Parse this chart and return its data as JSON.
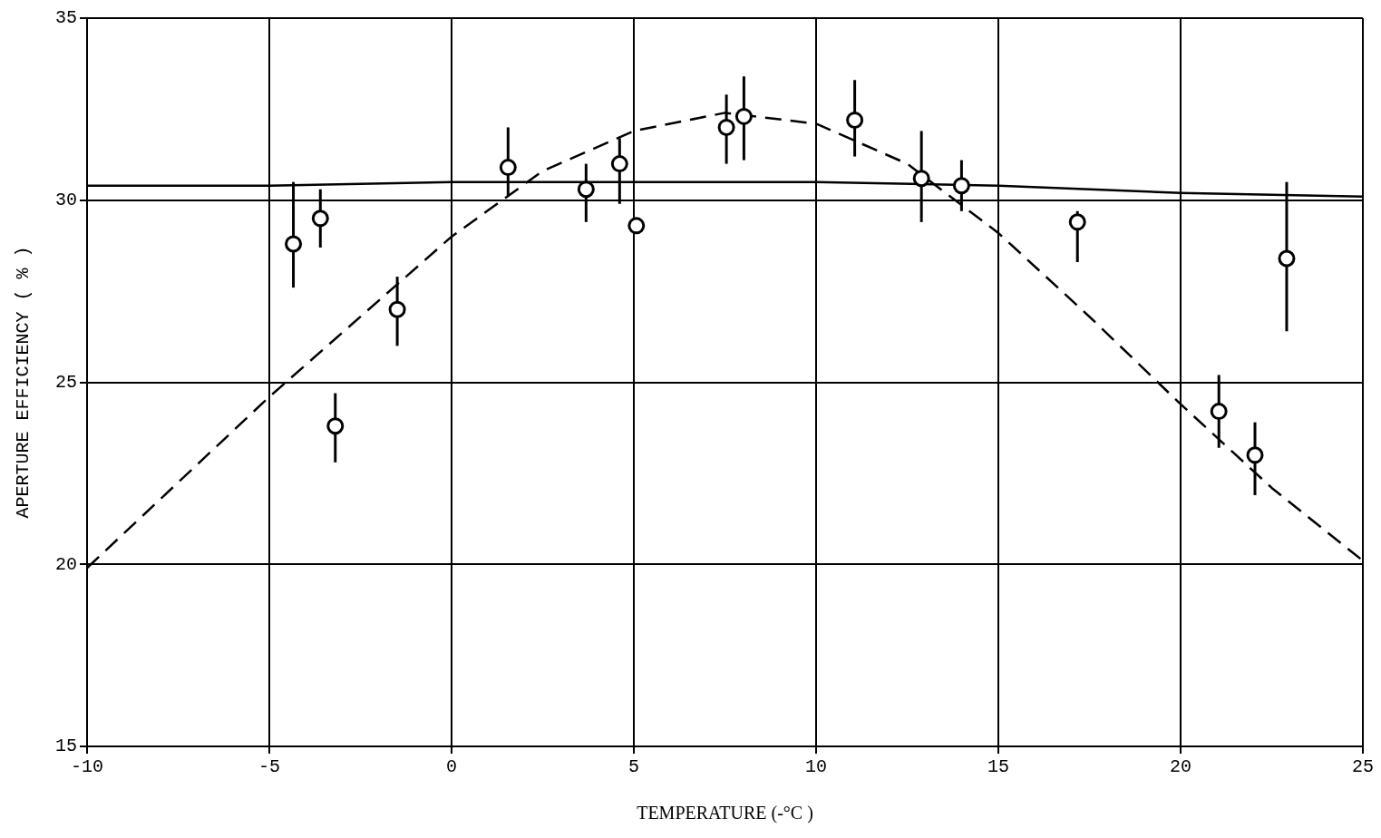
{
  "chart_data": {
    "type": "scatter",
    "xlabel": "TEMPERATURE (-°C )",
    "ylabel": "APERTURE EFFICIENCY ( % )",
    "xlim": [
      -10,
      25
    ],
    "xticks": [
      -10,
      -5,
      0,
      5,
      10,
      15,
      20,
      25
    ],
    "ylim": [
      15,
      35
    ],
    "yticks": [
      15,
      20,
      25,
      30,
      35
    ],
    "grid": true,
    "legend": false,
    "series": [
      {
        "color": "#000000",
        "marker": "circle",
        "x": [
          -4.34,
          -3.6,
          -3.19,
          -1.49,
          1.55,
          3.69,
          4.61,
          5.07,
          7.54,
          8.02,
          11.06,
          12.89,
          13.99,
          17.17,
          21.05,
          22.04,
          22.91
        ],
        "values": [
          28.8,
          29.5,
          23.8,
          27.0,
          30.9,
          30.3,
          31.0,
          29.3,
          32.0,
          32.3,
          32.2,
          30.6,
          30.4,
          29.4,
          24.2,
          23.0,
          28.4
        ],
        "errors": [
          [
            27.6,
            30.5
          ],
          [
            28.7,
            30.3
          ],
          [
            22.8,
            24.7
          ],
          [
            26.0,
            27.9
          ],
          [
            30.1,
            32.0
          ],
          [
            29.4,
            31.0
          ],
          [
            29.9,
            31.7
          ],
          null,
          [
            31.0,
            32.9
          ],
          [
            31.1,
            33.4
          ],
          [
            31.2,
            33.3
          ],
          [
            29.4,
            31.9
          ],
          [
            29.7,
            31.1
          ],
          [
            28.3,
            29.7
          ],
          [
            23.2,
            25.2
          ],
          [
            21.9,
            23.9
          ],
          [
            26.4,
            30.5
          ]
        ]
      },
      {
        "type": "line",
        "color": "#000000",
        "marker": "none",
        "line_style": "solid",
        "x": [
          -10,
          -5,
          0,
          5,
          10,
          15,
          20,
          25
        ],
        "values": [
          30.4,
          30.4,
          30.5,
          30.5,
          30.5,
          30.4,
          30.2,
          30.1
        ]
      },
      {
        "type": "line",
        "color": "#000000",
        "marker": "none",
        "line_style": "dashed",
        "x": [
          -10,
          -5,
          0,
          2.5,
          5,
          7.5,
          10,
          12.5,
          15,
          17.5,
          20,
          22.5,
          25
        ],
        "values": [
          19.9,
          24.6,
          29.0,
          30.8,
          31.9,
          32.4,
          32.1,
          31.0,
          29.1,
          26.8,
          24.4,
          22.1,
          20.1
        ]
      }
    ]
  }
}
